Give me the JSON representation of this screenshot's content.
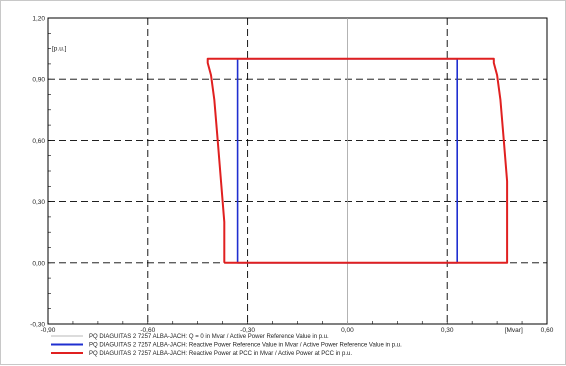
{
  "chart_data": {
    "type": "line",
    "xlim": [
      -0.9,
      0.6
    ],
    "ylim": [
      -0.3,
      1.2
    ],
    "x_ticks": [
      -0.9,
      -0.6,
      -0.3,
      0.0,
      0.3,
      0.6
    ],
    "x_tick_labels": [
      "-0,90",
      "-0,60",
      "-0,30",
      "0,00",
      "0,30",
      "0,60"
    ],
    "y_ticks": [
      -0.3,
      0.0,
      0.3,
      0.6,
      0.9,
      1.2
    ],
    "y_tick_labels": [
      "-0,30",
      "0,00",
      "0,30",
      "0,60",
      "0,90",
      "1,20"
    ],
    "x_unit": "[Mvar]",
    "y_unit": "[p.u.]",
    "grid": true,
    "legend_position": "bottom",
    "series": [
      {
        "name": "PQ DIAGUITAS 2 7257 ALBA-JACH: Q = 0 in Mvar / Active Power Reference Value in p.u.",
        "color": "#a0a0a0",
        "x": [
          0.0,
          0.0
        ],
        "y": [
          -0.3,
          1.2
        ]
      },
      {
        "name": "PQ DIAGUITAS 2 7257 ALBA-JACH: Reactive Power Reference Value in Mvar / Active Power Reference Value in p.u.",
        "color": "#1f2fd0",
        "x": [
          -0.33,
          -0.33,
          0.33,
          0.33,
          -0.33
        ],
        "y": [
          0.0,
          1.0,
          1.0,
          0.0,
          0.0
        ]
      },
      {
        "name": "PQ DIAGUITAS 2 7257 ALBA-JACH: Reactive Power at PCC in Mvar / Active Power at PCC in p.u.",
        "color": "#e02020",
        "x": [
          -0.37,
          -0.37,
          -0.38,
          -0.39,
          -0.4,
          -0.41,
          -0.42,
          -0.42,
          0.44,
          0.44,
          0.45,
          0.46,
          0.47,
          0.48,
          0.48,
          0.48,
          -0.37
        ],
        "y": [
          0.0,
          0.2,
          0.4,
          0.6,
          0.8,
          0.92,
          0.98,
          1.0,
          1.0,
          0.98,
          0.92,
          0.8,
          0.6,
          0.4,
          0.2,
          0.0,
          0.0
        ]
      }
    ]
  }
}
